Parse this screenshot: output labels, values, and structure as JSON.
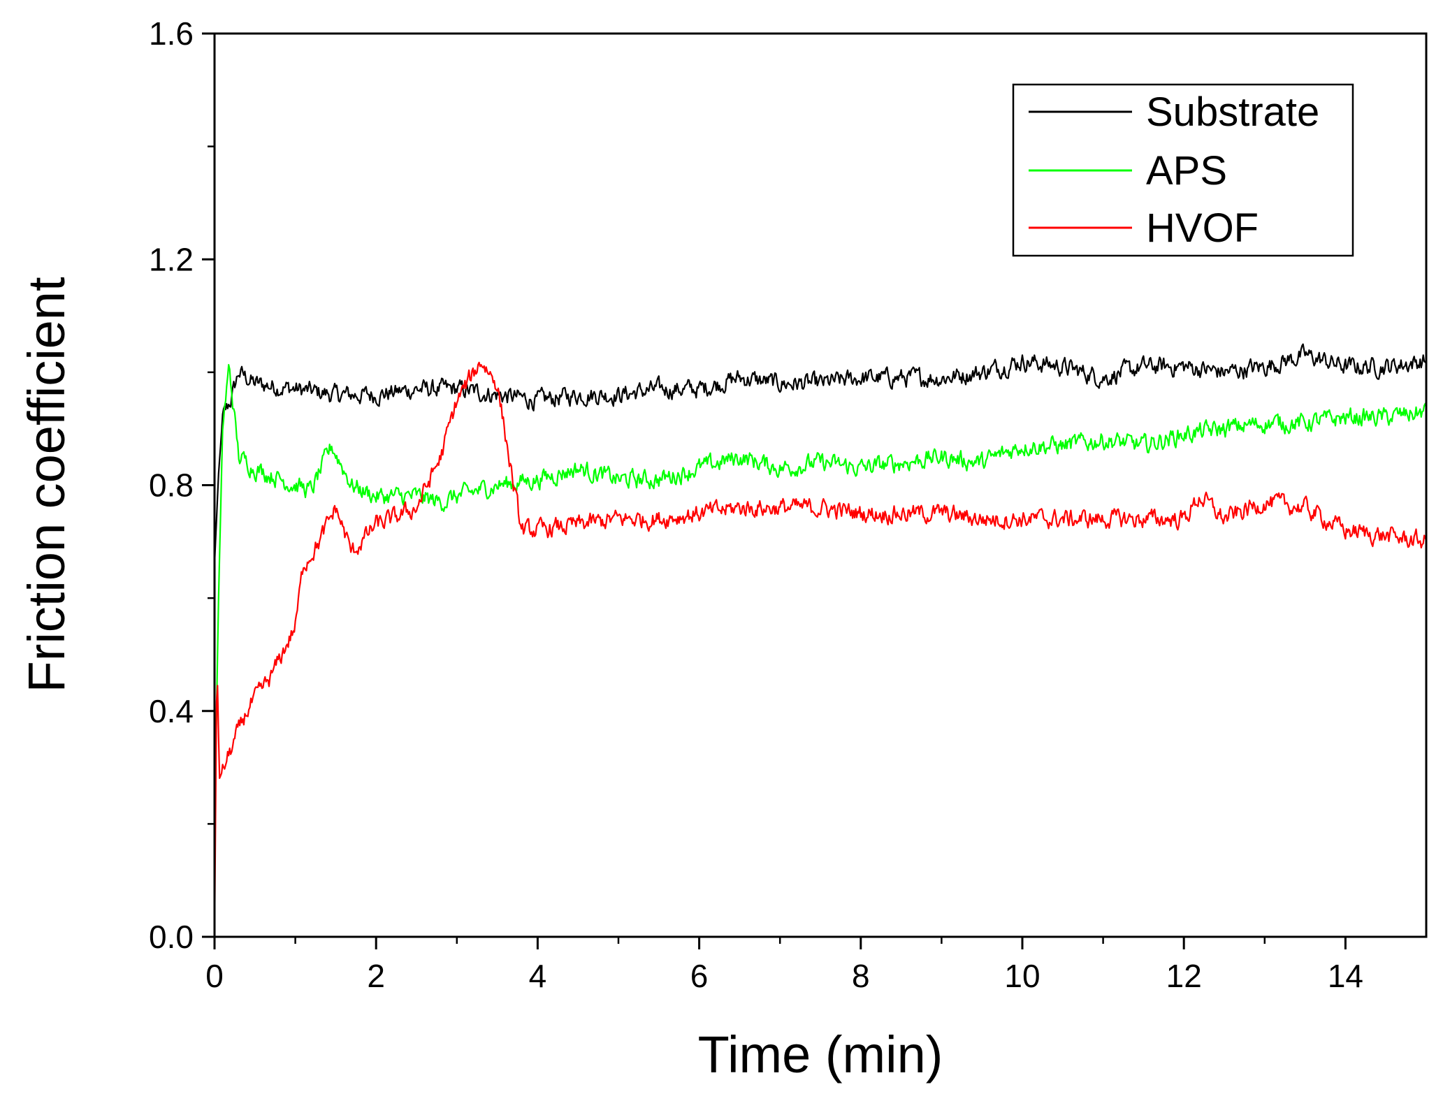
{
  "chart_data": {
    "type": "line",
    "title": "",
    "xlabel": "Time (min)",
    "ylabel": "Friction coefficient",
    "xlim": [
      0,
      15
    ],
    "ylim": [
      0,
      1.6
    ],
    "x_ticks": [
      0,
      2,
      4,
      6,
      8,
      10,
      12,
      14
    ],
    "x_tick_labels": [
      "0",
      "2",
      "4",
      "6",
      "8",
      "10",
      "12",
      "14"
    ],
    "y_ticks": [
      0,
      0.4,
      0.8,
      1.2,
      1.6
    ],
    "y_tick_labels": [
      "0.0",
      "0.4",
      "0.8",
      "1.2",
      "1.6"
    ],
    "legend_position": "top-right",
    "grid": false,
    "series": [
      {
        "name": "Substrate",
        "color": "#000000",
        "points": [
          [
            0,
            0.66
          ],
          [
            0.05,
            0.82
          ],
          [
            0.1,
            0.92
          ],
          [
            0.2,
            0.95
          ],
          [
            0.3,
            1.0
          ],
          [
            0.5,
            0.98
          ],
          [
            1.0,
            0.97
          ],
          [
            1.5,
            0.96
          ],
          [
            2.0,
            0.96
          ],
          [
            2.5,
            0.97
          ],
          [
            3.0,
            0.97
          ],
          [
            3.5,
            0.96
          ],
          [
            4.0,
            0.95
          ],
          [
            4.5,
            0.96
          ],
          [
            5.0,
            0.96
          ],
          [
            5.5,
            0.97
          ],
          [
            6.0,
            0.97
          ],
          [
            6.5,
            0.99
          ],
          [
            7.0,
            0.98
          ],
          [
            7.5,
            0.98
          ],
          [
            8.0,
            0.99
          ],
          [
            8.5,
            0.99
          ],
          [
            9.0,
            0.99
          ],
          [
            9.5,
            1.0
          ],
          [
            10.0,
            1.02
          ],
          [
            10.5,
            1.01
          ],
          [
            11.0,
            0.99
          ],
          [
            11.5,
            1.01
          ],
          [
            12.0,
            1.01
          ],
          [
            12.5,
            1.0
          ],
          [
            13.0,
            1.01
          ],
          [
            13.5,
            1.03
          ],
          [
            14.0,
            1.01
          ],
          [
            14.5,
            1.01
          ],
          [
            15.0,
            1.02
          ]
        ]
      },
      {
        "name": "APS",
        "color": "#00ff00",
        "points": [
          [
            0,
            0.2
          ],
          [
            0.05,
            0.6
          ],
          [
            0.1,
            0.9
          ],
          [
            0.18,
            1.01
          ],
          [
            0.3,
            0.85
          ],
          [
            0.5,
            0.83
          ],
          [
            1.0,
            0.8
          ],
          [
            1.2,
            0.79
          ],
          [
            1.45,
            0.87
          ],
          [
            1.7,
            0.8
          ],
          [
            2.0,
            0.78
          ],
          [
            2.5,
            0.78
          ],
          [
            2.8,
            0.77
          ],
          [
            3.0,
            0.78
          ],
          [
            3.5,
            0.8
          ],
          [
            4.0,
            0.81
          ],
          [
            4.5,
            0.83
          ],
          [
            5.0,
            0.81
          ],
          [
            5.5,
            0.81
          ],
          [
            6.0,
            0.83
          ],
          [
            6.5,
            0.85
          ],
          [
            7.0,
            0.83
          ],
          [
            7.5,
            0.84
          ],
          [
            8.0,
            0.83
          ],
          [
            8.5,
            0.84
          ],
          [
            9.0,
            0.85
          ],
          [
            9.5,
            0.84
          ],
          [
            10.0,
            0.87
          ],
          [
            10.5,
            0.87
          ],
          [
            11.0,
            0.88
          ],
          [
            11.5,
            0.87
          ],
          [
            12.0,
            0.89
          ],
          [
            12.5,
            0.9
          ],
          [
            13.0,
            0.91
          ],
          [
            13.5,
            0.91
          ],
          [
            14.0,
            0.92
          ],
          [
            14.5,
            0.92
          ],
          [
            15.0,
            0.93
          ]
        ]
      },
      {
        "name": "HVOF",
        "color": "#ff0000",
        "points": [
          [
            0,
            0.0
          ],
          [
            0.03,
            0.5
          ],
          [
            0.06,
            0.28
          ],
          [
            0.2,
            0.33
          ],
          [
            0.4,
            0.4
          ],
          [
            0.7,
            0.46
          ],
          [
            1.0,
            0.55
          ],
          [
            1.1,
            0.66
          ],
          [
            1.3,
            0.7
          ],
          [
            1.5,
            0.76
          ],
          [
            1.7,
            0.68
          ],
          [
            2.0,
            0.73
          ],
          [
            2.2,
            0.74
          ],
          [
            2.5,
            0.76
          ],
          [
            2.8,
            0.85
          ],
          [
            3.0,
            0.95
          ],
          [
            3.3,
            1.02
          ],
          [
            3.5,
            0.98
          ],
          [
            3.7,
            0.8
          ],
          [
            3.8,
            0.72
          ],
          [
            4.0,
            0.72
          ],
          [
            4.5,
            0.73
          ],
          [
            5.0,
            0.74
          ],
          [
            5.5,
            0.74
          ],
          [
            6.0,
            0.75
          ],
          [
            6.5,
            0.76
          ],
          [
            7.0,
            0.76
          ],
          [
            7.5,
            0.76
          ],
          [
            8.0,
            0.75
          ],
          [
            8.5,
            0.75
          ],
          [
            9.0,
            0.75
          ],
          [
            9.5,
            0.74
          ],
          [
            10.0,
            0.74
          ],
          [
            10.5,
            0.74
          ],
          [
            11.0,
            0.74
          ],
          [
            11.5,
            0.74
          ],
          [
            12.0,
            0.74
          ],
          [
            12.2,
            0.78
          ],
          [
            12.5,
            0.74
          ],
          [
            13.0,
            0.77
          ],
          [
            13.5,
            0.76
          ],
          [
            14.0,
            0.72
          ],
          [
            14.5,
            0.71
          ],
          [
            15.0,
            0.7
          ]
        ]
      }
    ]
  }
}
